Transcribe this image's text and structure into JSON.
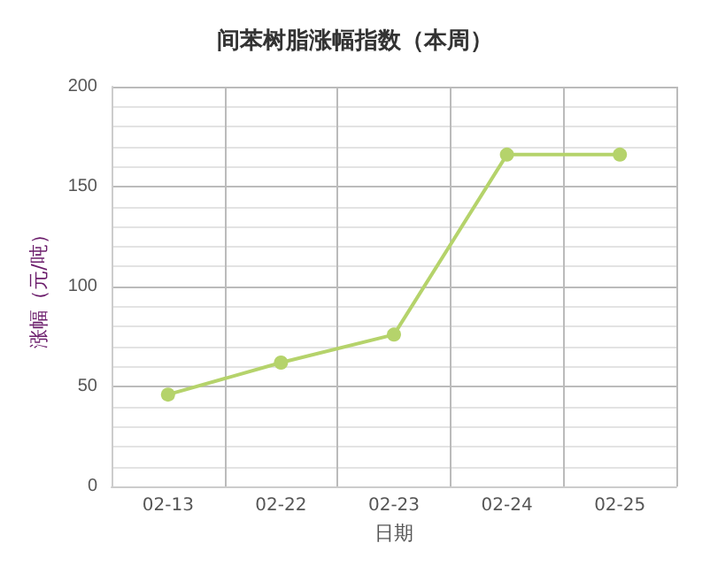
{
  "chart_data": {
    "type": "line",
    "title": "间苯树脂涨幅指数（本周）",
    "xlabel": "日期",
    "ylabel": "涨幅（元/吨）",
    "categories": [
      "02-13",
      "02-22",
      "02-23",
      "02-24",
      "02-25"
    ],
    "series": [
      {
        "color": "#b5d36b",
        "values": [
          46,
          62,
          76,
          166,
          166
        ]
      }
    ],
    "ylim": [
      0,
      200
    ],
    "yticks": [
      0,
      50,
      100,
      150,
      200
    ],
    "grid": true,
    "marker": "circle",
    "line_style": "solid"
  }
}
